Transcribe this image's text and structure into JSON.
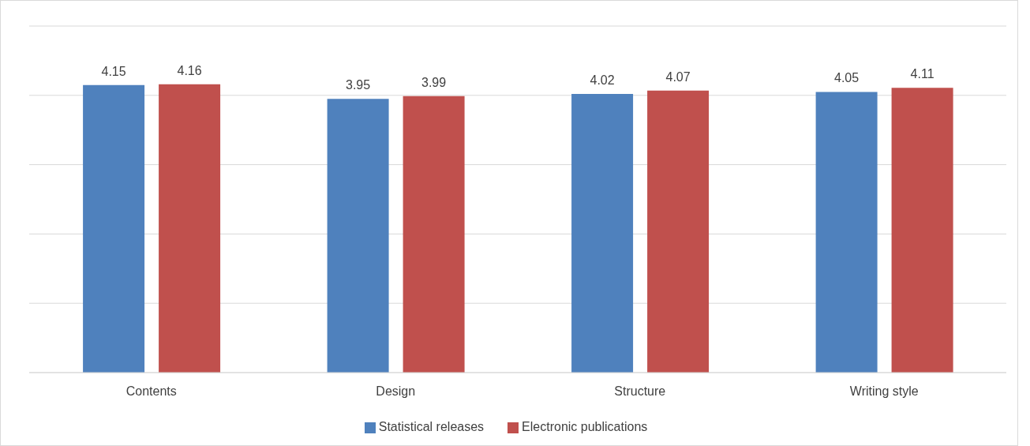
{
  "chart_data": {
    "type": "bar",
    "categories": [
      "Contents",
      "Design",
      "Structure",
      "Writing style"
    ],
    "series": [
      {
        "name": "Statistical releases",
        "color": "#4f81bd",
        "values": [
          4.15,
          3.95,
          4.02,
          4.05
        ]
      },
      {
        "name": "Electronic publications",
        "color": "#c0504d",
        "values": [
          4.16,
          3.99,
          4.07,
          4.11
        ]
      }
    ],
    "ylim": [
      0,
      5
    ],
    "grid": "y",
    "legend": "bottom",
    "data_labels": true,
    "tick_labels": "x"
  }
}
